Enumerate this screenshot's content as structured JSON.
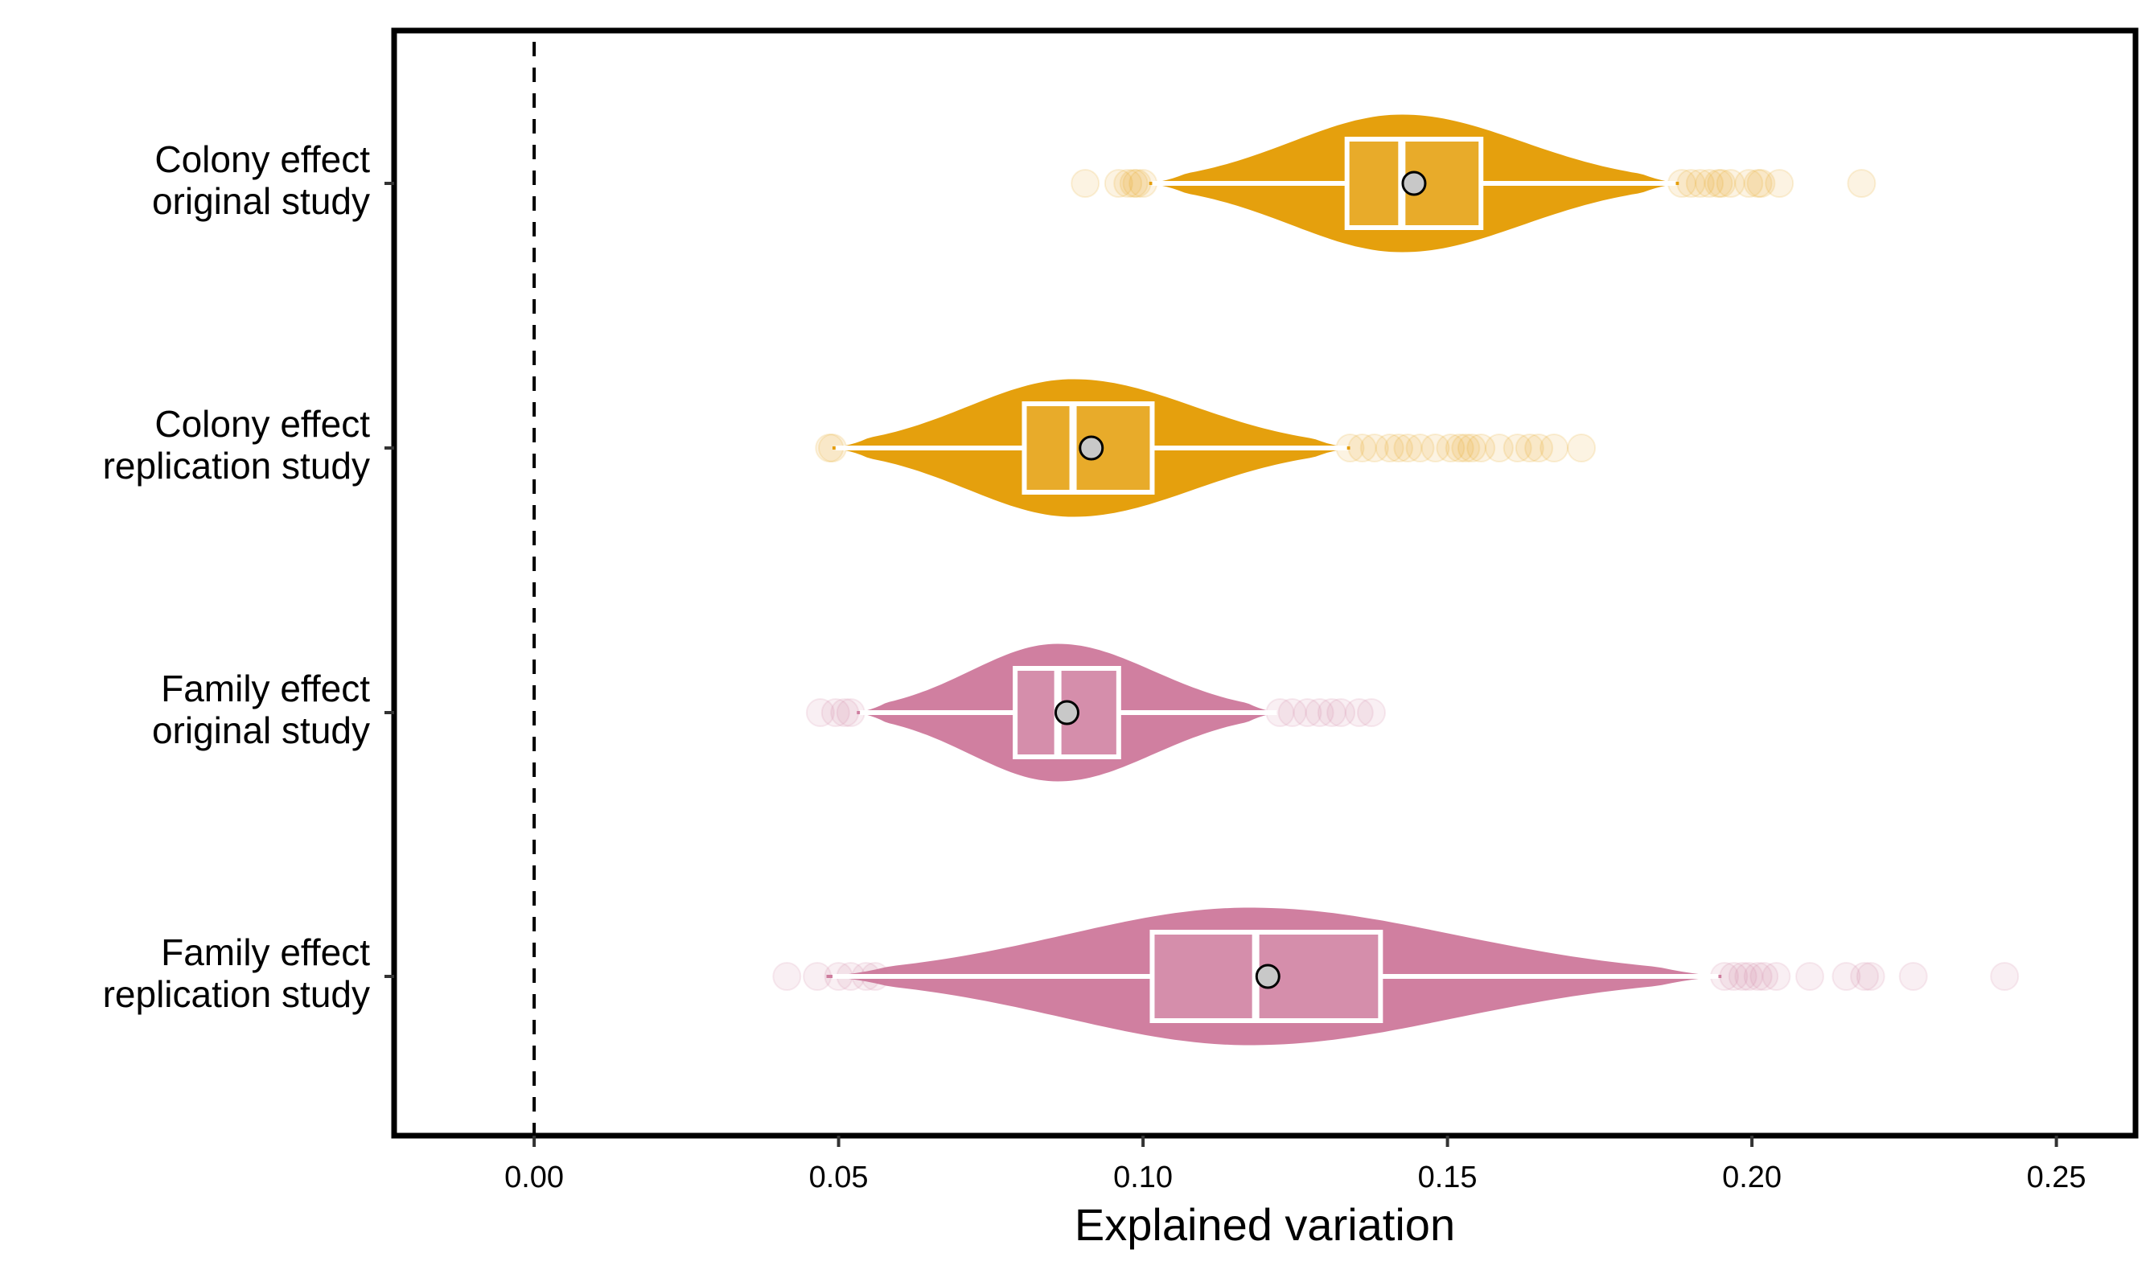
{
  "chart_data": {
    "type": "violin",
    "xlabel": "Explained variation",
    "ylabel": "",
    "title": "",
    "xlim": [
      -0.023,
      0.263
    ],
    "xticks": [
      {
        "value": 0.0,
        "label": "0.00"
      },
      {
        "value": 0.05,
        "label": "0.05"
      },
      {
        "value": 0.1,
        "label": "0.10"
      },
      {
        "value": 0.15,
        "label": "0.15"
      },
      {
        "value": 0.2,
        "label": "0.20"
      },
      {
        "value": 0.25,
        "label": "0.25"
      }
    ],
    "reference_line": {
      "x": 0.0,
      "style": "dashed"
    },
    "grid": false,
    "categories": [
      {
        "lines": [
          "Colony effect",
          "original study"
        ],
        "color": "#E5A00D",
        "q1": 0.1335,
        "median": 0.1425,
        "q3": 0.1555,
        "whisker_low": 0.1015,
        "whisker_high": 0.1875,
        "mean": 0.1445,
        "violin_min": 0.101,
        "violin_max": 0.188,
        "violin_peak": 0.1425,
        "violin_half_width": 0.52,
        "outliers": [
          0.0905,
          0.096,
          0.0975,
          0.0985,
          0.099,
          0.1,
          0.1885,
          0.19,
          0.1915,
          0.193,
          0.1945,
          0.195,
          0.1965,
          0.1995,
          0.201,
          0.2015,
          0.2045,
          0.218
        ]
      },
      {
        "lines": [
          "Colony effect",
          "replication study"
        ],
        "color": "#E5A00D",
        "q1": 0.0805,
        "median": 0.0885,
        "q3": 0.1015,
        "whisker_low": 0.0495,
        "whisker_high": 0.1335,
        "mean": 0.0915,
        "violin_min": 0.049,
        "violin_max": 0.134,
        "violin_peak": 0.0885,
        "violin_half_width": 0.52,
        "outliers": [
          0.0485,
          0.049,
          0.134,
          0.136,
          0.138,
          0.1405,
          0.142,
          0.1435,
          0.1455,
          0.148,
          0.1505,
          0.152,
          0.153,
          0.154,
          0.1555,
          0.1585,
          0.1615,
          0.1635,
          0.165,
          0.1675,
          0.172
        ]
      },
      {
        "lines": [
          "Family effect",
          "original study"
        ],
        "color": "#D07FA0",
        "q1": 0.079,
        "median": 0.086,
        "q3": 0.096,
        "whisker_low": 0.0535,
        "whisker_high": 0.122,
        "mean": 0.0875,
        "violin_min": 0.053,
        "violin_max": 0.122,
        "violin_peak": 0.086,
        "violin_half_width": 0.52,
        "outliers": [
          0.047,
          0.0495,
          0.051,
          0.052,
          0.1225,
          0.1245,
          0.127,
          0.129,
          0.131,
          0.1325,
          0.1355,
          0.1375
        ]
      },
      {
        "lines": [
          "Family effect",
          "replication study"
        ],
        "color": "#D07FA0",
        "q1": 0.1015,
        "median": 0.1185,
        "q3": 0.139,
        "whisker_low": 0.049,
        "whisker_high": 0.1945,
        "mean": 0.1205,
        "violin_min": 0.048,
        "violin_max": 0.195,
        "violin_peak": 0.1175,
        "violin_half_width": 0.52,
        "outliers": [
          0.0415,
          0.0465,
          0.05,
          0.052,
          0.0545,
          0.056,
          0.1955,
          0.197,
          0.1985,
          0.1995,
          0.201,
          0.202,
          0.204,
          0.2095,
          0.2155,
          0.2185,
          0.2195,
          0.2265,
          0.2415
        ]
      }
    ]
  }
}
